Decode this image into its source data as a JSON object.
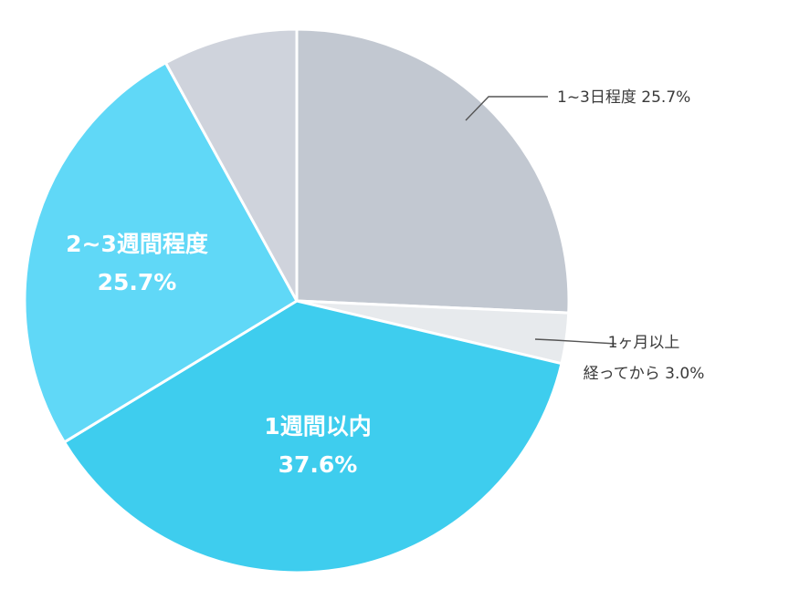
{
  "chart_data": {
    "type": "pie",
    "slices": [
      {
        "label": "1~3日程度",
        "label_lines": [
          "1~3日程度"
        ],
        "value_text": "25.7%",
        "value": 25.7,
        "color": "#c2c8d1",
        "label_style": "outside"
      },
      {
        "label": "1ヶ月以上経ってから",
        "label_lines": [
          "1ヶ月以上",
          "経ってから"
        ],
        "value_text": "3.0%",
        "value": 3.0,
        "color": "#e7eaed",
        "label_style": "outside"
      },
      {
        "label": "1週間以内",
        "label_lines": [
          "1週間以内"
        ],
        "value_text": "37.6%",
        "value": 37.6,
        "color": "#3ecdee",
        "label_style": "inside"
      },
      {
        "label": "2~3週間程度",
        "label_lines": [
          "2~3週間程度"
        ],
        "value_text": "25.7%",
        "value": 25.7,
        "color": "#60d8f7",
        "label_style": "inside"
      },
      {
        "label": "",
        "label_lines": [],
        "value_text": "",
        "value": 8.0,
        "color": "#cfd3dc",
        "label_style": "none"
      }
    ],
    "start": "top",
    "direction": "clockwise"
  }
}
